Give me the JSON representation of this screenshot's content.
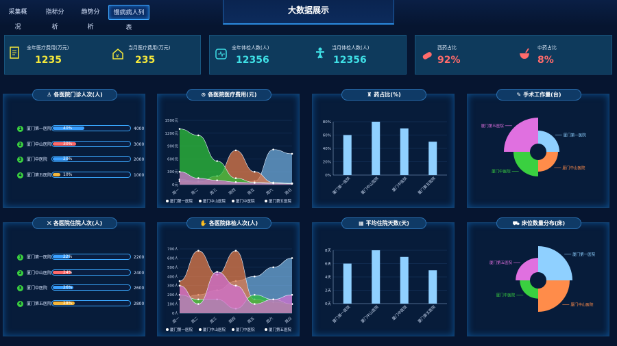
{
  "nav": {
    "tabs": [
      "采集概况",
      "指标分析",
      "趋势分析",
      "慢病病人列表"
    ],
    "title": "大数据展示"
  },
  "stats": [
    {
      "label": "全年医疗费用(万元)",
      "value": "1235",
      "color": "#f4e83b"
    },
    {
      "label": "当月医疗费用(万元)",
      "value": "235",
      "color": "#f4e83b"
    },
    {
      "label": "全年体检人数(人)",
      "value": "12356",
      "color": "#3fe0e6"
    },
    {
      "label": "当月体检人数(人)",
      "value": "12356",
      "color": "#3fe0e6"
    },
    {
      "label": "西药占比",
      "value": "92%",
      "color": "#ff6b6b"
    },
    {
      "label": "中药占比",
      "value": "8%",
      "color": "#ff6b6b"
    }
  ],
  "panels": {
    "outpatient": {
      "title": "各医院门诊人次(人)",
      "icon": "person-icon",
      "rows": [
        {
          "num": "1",
          "name": "厦门第一医院",
          "pct": "40%",
          "count": "4000",
          "frac": 0.4,
          "color": "#3aa0ff"
        },
        {
          "num": "2",
          "name": "厦门中山医院",
          "pct": "30%",
          "count": "3000",
          "frac": 0.3,
          "color": "#ff6a6a"
        },
        {
          "num": "3",
          "name": "厦门中医院",
          "pct": "20%",
          "count": "2000",
          "frac": 0.2,
          "color": "#3aa0ff"
        },
        {
          "num": "4",
          "name": "厦门第五医院",
          "pct": "10%",
          "count": "1000",
          "frac": 0.1,
          "color": "#f4b63b"
        }
      ]
    },
    "cost": {
      "title": "各医院医疗费用(元)",
      "icon": "yuan-icon"
    },
    "drug": {
      "title": "药占比(%)",
      "icon": "bottle-icon"
    },
    "surgery": {
      "title": "手术工作量(台)",
      "icon": "scalpel-icon"
    },
    "inpatient": {
      "title": "各医院住院人次(人)",
      "icon": "bed-person-icon",
      "rows": [
        {
          "num": "1",
          "name": "厦门第一医院",
          "pct": "22%",
          "count": "2200",
          "frac": 0.22,
          "color": "#3aa0ff"
        },
        {
          "num": "2",
          "name": "厦门中山医院",
          "pct": "24%",
          "count": "2400",
          "frac": 0.24,
          "color": "#ff6a6a"
        },
        {
          "num": "3",
          "name": "厦门中医院",
          "pct": "26%",
          "count": "2600",
          "frac": 0.26,
          "color": "#3aa0ff"
        },
        {
          "num": "4",
          "name": "厦门第五医院",
          "pct": "28%",
          "count": "2800",
          "frac": 0.28,
          "color": "#f4b63b"
        }
      ]
    },
    "checkup": {
      "title": "各医院体检人次(人)",
      "icon": "hand-icon"
    },
    "stay": {
      "title": "平均住院天数(天)",
      "icon": "calendar-icon"
    },
    "beds": {
      "title": "床位数量分布(床)",
      "icon": "bed-icon"
    }
  },
  "legend": [
    "厦门第一医院",
    "厦门中山医院",
    "厦门中医院",
    "厦门第五医院"
  ],
  "chart_data": [
    {
      "type": "area",
      "categories": [
        "周一",
        "周二",
        "周三",
        "周四",
        "周五",
        "周六",
        "周日"
      ],
      "yticks": [
        "0元",
        "300元",
        "600元",
        "900元",
        "1200元",
        "1500元"
      ],
      "ylim": [
        0,
        1500
      ],
      "series": [
        {
          "name": "厦门第一医院",
          "values": [
            120,
            80,
            60,
            50,
            80,
            820,
            720
          ],
          "color": "#6fa8d8"
        },
        {
          "name": "厦门中山医院",
          "values": [
            80,
            60,
            200,
            800,
            300,
            50,
            30
          ],
          "color": "#e07a4a"
        },
        {
          "name": "厦门中医院",
          "values": [
            1300,
            1150,
            550,
            150,
            50,
            40,
            30
          ],
          "color": "#2fbf3a"
        },
        {
          "name": "厦门第五医院",
          "values": [
            300,
            150,
            100,
            60,
            40,
            30,
            20
          ],
          "color": "#d070d0"
        }
      ]
    },
    {
      "type": "bar",
      "categories": [
        "厦门第一医院",
        "厦门中山医院",
        "厦门中医院",
        "厦门第五医院"
      ],
      "yticks": [
        "0%",
        "20%",
        "40%",
        "60%",
        "80%"
      ],
      "ylim": [
        0,
        80
      ],
      "values": [
        60,
        80,
        70,
        50
      ],
      "color": "#8fd0ff"
    },
    {
      "type": "pie",
      "labels": [
        "厦门第一医院",
        "厦门中山医院",
        "厦门中医院",
        "厦门第五医院"
      ],
      "values": [
        25,
        20,
        40,
        100
      ],
      "colors": [
        "#8fd0ff",
        "#ff8c4a",
        "#3ad040",
        "#e070e0"
      ]
    },
    {
      "type": "area",
      "categories": [
        "周一",
        "周二",
        "周三",
        "周四",
        "周五",
        "周六",
        "周日"
      ],
      "yticks": [
        "0人",
        "100人",
        "200人",
        "300人",
        "400人",
        "500人",
        "600人",
        "700人"
      ],
      "ylim": [
        0,
        700
      ],
      "series": [
        {
          "name": "厦门第一医院",
          "values": [
            150,
            200,
            250,
            350,
            400,
            500,
            600
          ],
          "color": "#6fa8d8"
        },
        {
          "name": "厦门中山医院",
          "values": [
            350,
            680,
            420,
            680,
            150,
            120,
            100
          ],
          "color": "#e07a4a"
        },
        {
          "name": "厦门中医院",
          "values": [
            200,
            150,
            150,
            50,
            200,
            150,
            100
          ],
          "color": "#2fbf3a"
        },
        {
          "name": "厦门第五医院",
          "values": [
            300,
            100,
            450,
            300,
            100,
            150,
            200
          ],
          "color": "#d070d0"
        }
      ]
    },
    {
      "type": "bar",
      "categories": [
        "厦门第一医院",
        "厦门中山医院",
        "厦门中医院",
        "厦门第五医院"
      ],
      "yticks": [
        "0天",
        "2天",
        "4天",
        "6天",
        "8天"
      ],
      "ylim": [
        0,
        8
      ],
      "values": [
        6,
        8,
        7,
        5
      ],
      "color": "#8fd0ff"
    },
    {
      "type": "pie",
      "labels": [
        "厦门第一医院",
        "厦门中山医院",
        "厦门中医院",
        "厦门第五医院"
      ],
      "values": [
        100,
        80,
        15,
        30
      ],
      "colors": [
        "#8fd0ff",
        "#ff8c4a",
        "#3ad040",
        "#e070e0"
      ]
    }
  ]
}
